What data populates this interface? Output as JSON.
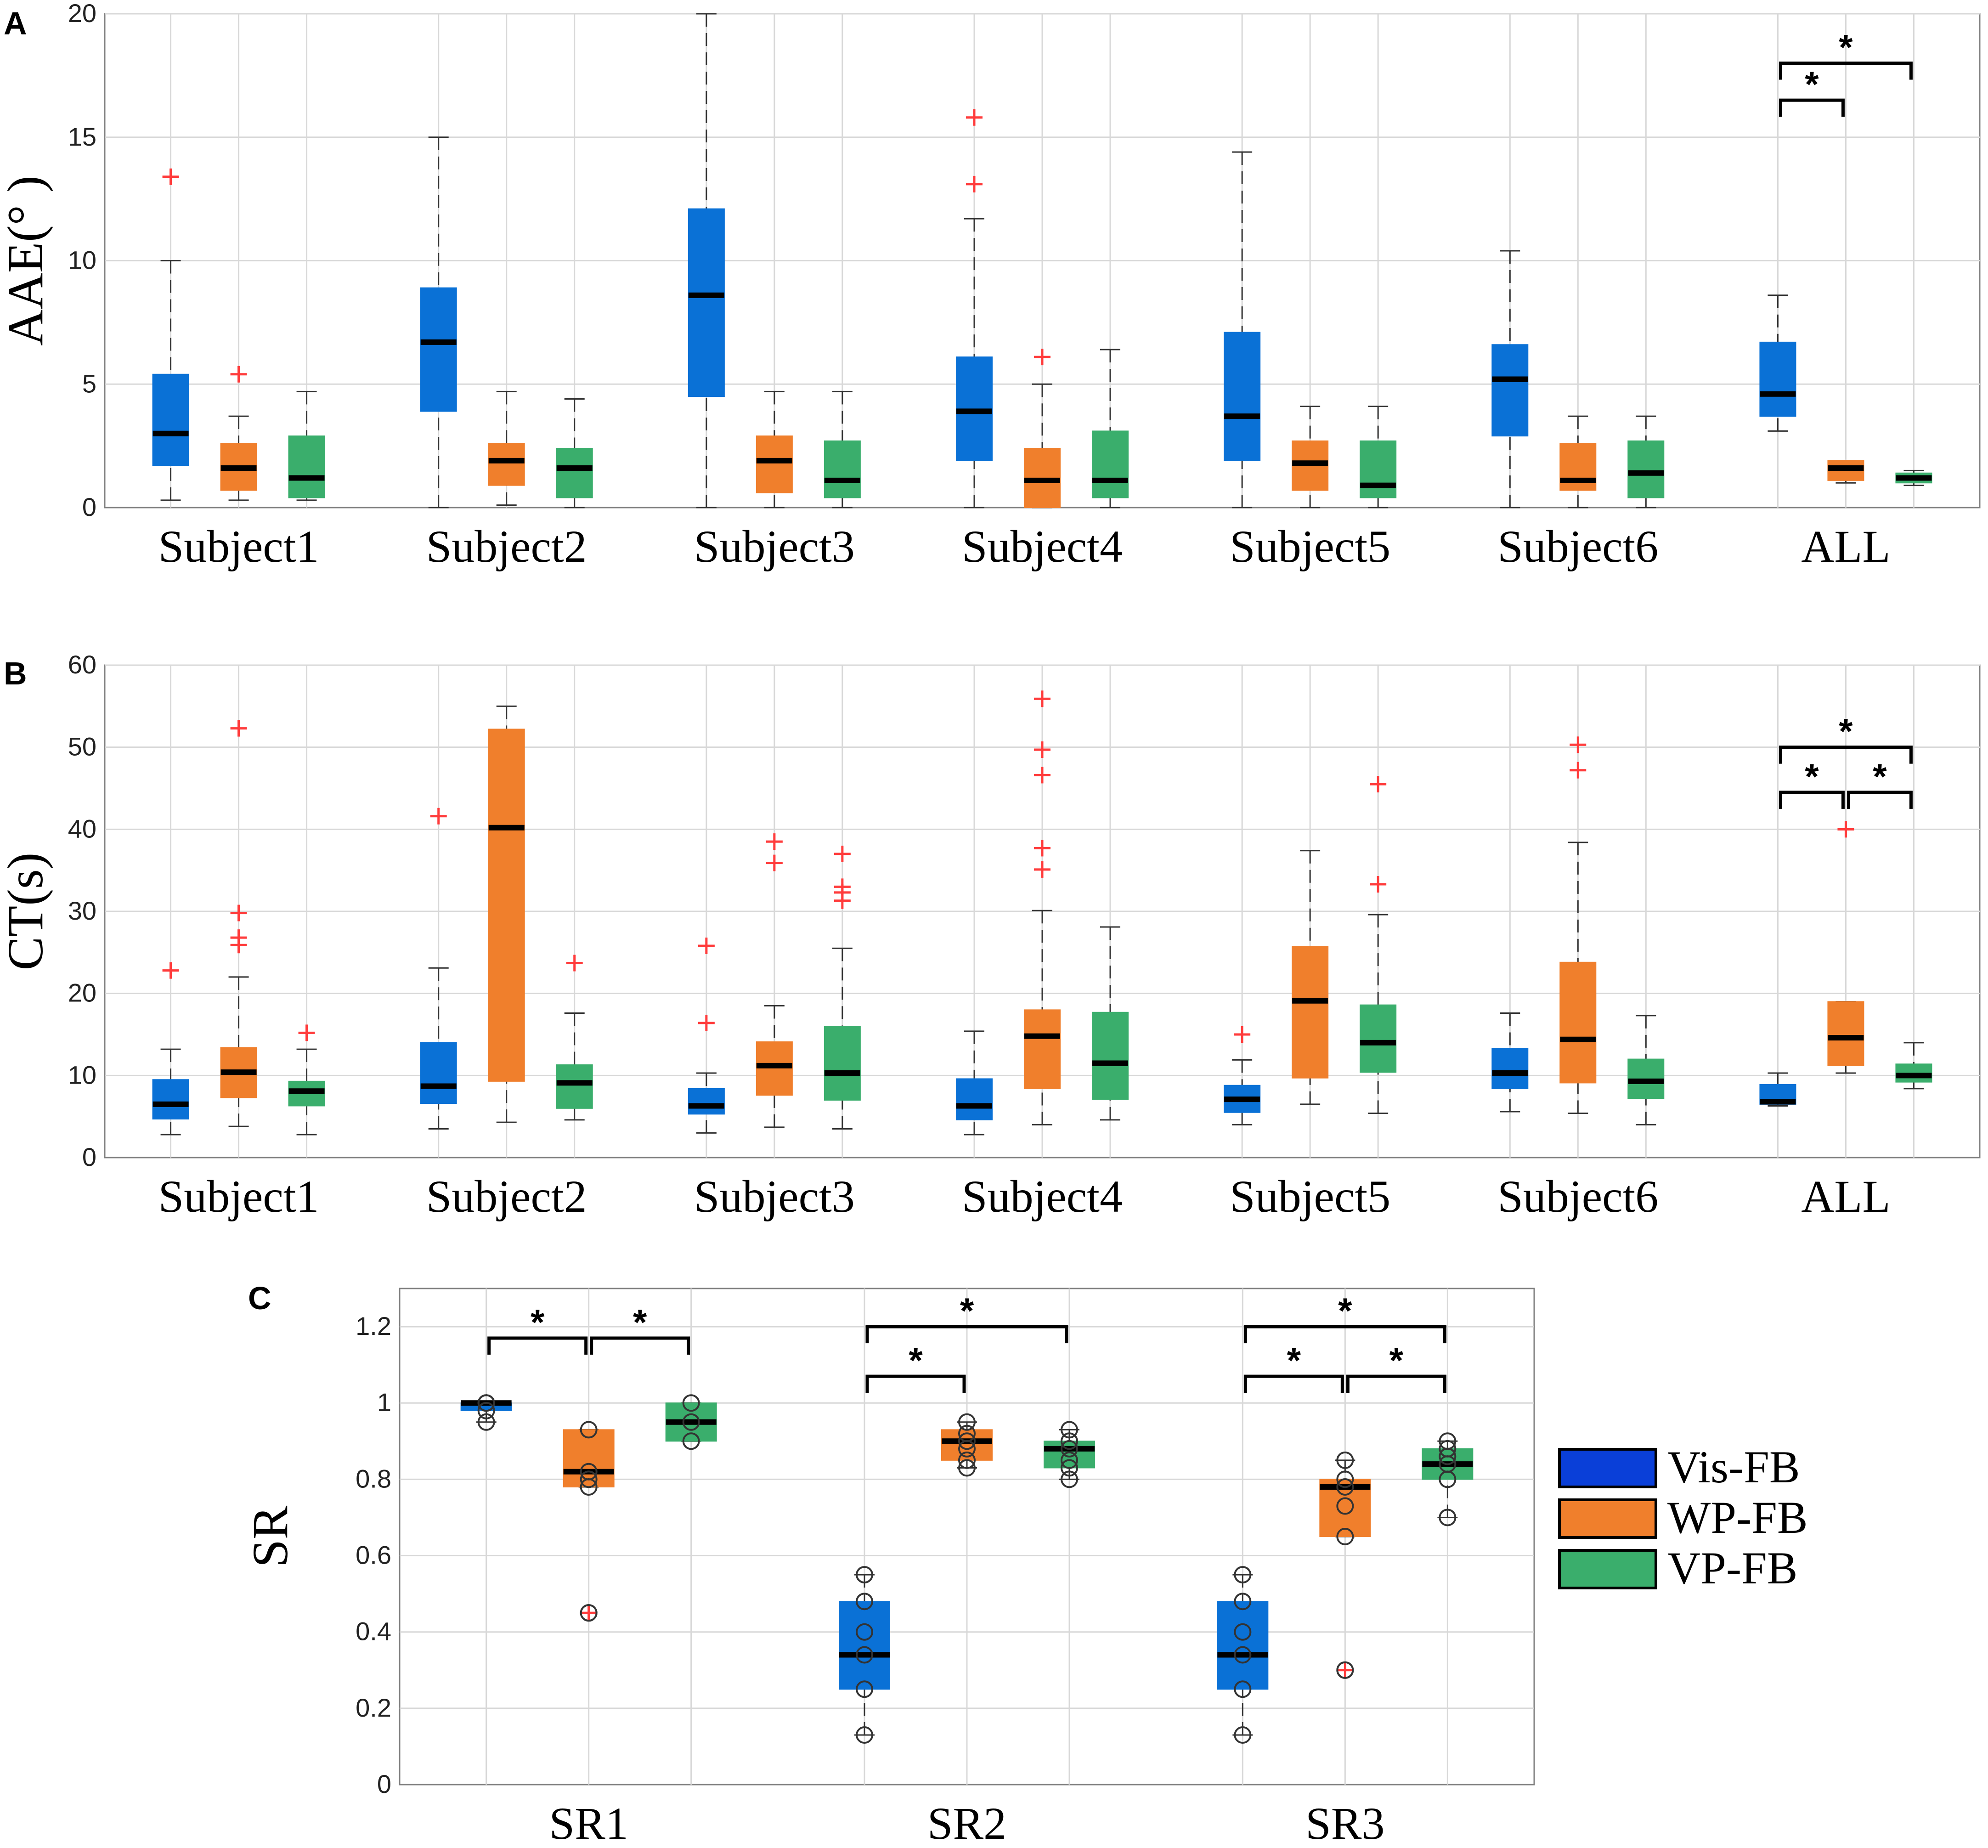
{
  "legend": {
    "items": [
      {
        "label": "Vis-FB",
        "color": "#0a3fd8"
      },
      {
        "label": "WP-FB",
        "color": "#f07f2c"
      },
      {
        "label": "VP-FB",
        "color": "#3aae6c"
      }
    ]
  },
  "colors": {
    "vis": "#0a71d6",
    "wp": "#f07f2c",
    "vp": "#3aae6c",
    "outlier": "#ff3b3b",
    "median": "#000000",
    "grid": "#d8d8d8",
    "axis": "#808080"
  },
  "chart_data": [
    {
      "panel": "A",
      "type": "box",
      "ylabel": "AAE(°  )",
      "ylim": [
        0,
        20
      ],
      "yticks": [
        "0",
        "5",
        "10",
        "15",
        "20"
      ],
      "ytick_values": [
        0,
        5,
        10,
        15,
        20
      ],
      "categories": [
        "Subject1",
        "Subject2",
        "Subject3",
        "Subject4",
        "Subject5",
        "Subject6",
        "ALL"
      ],
      "series": [
        "Vis-FB",
        "WP-FB",
        "VP-FB"
      ],
      "boxes": [
        [
          {
            "min": 0.3,
            "q1": 1.7,
            "med": 3.0,
            "q3": 5.4,
            "max": 10.0,
            "outliers": [
              13.4
            ]
          },
          {
            "min": 0.3,
            "q1": 0.7,
            "med": 1.6,
            "q3": 2.6,
            "max": 3.7,
            "outliers": [
              5.4
            ]
          },
          {
            "min": 0.3,
            "q1": 0.4,
            "med": 1.2,
            "q3": 2.9,
            "max": 4.7,
            "outliers": []
          }
        ],
        [
          {
            "min": 0.0,
            "q1": 3.9,
            "med": 6.7,
            "q3": 8.9,
            "max": 15.0,
            "outliers": []
          },
          {
            "min": 0.1,
            "q1": 0.9,
            "med": 1.9,
            "q3": 2.6,
            "max": 4.7,
            "outliers": []
          },
          {
            "min": 0.0,
            "q1": 0.4,
            "med": 1.6,
            "q3": 2.4,
            "max": 4.4,
            "outliers": []
          }
        ],
        [
          {
            "min": 0.0,
            "q1": 4.5,
            "med": 8.6,
            "q3": 12.1,
            "max": 20.0,
            "outliers": []
          },
          {
            "min": 0.0,
            "q1": 0.6,
            "med": 1.9,
            "q3": 2.9,
            "max": 4.7,
            "outliers": []
          },
          {
            "min": 0.0,
            "q1": 0.4,
            "med": 1.1,
            "q3": 2.7,
            "max": 4.7,
            "outliers": []
          }
        ],
        [
          {
            "min": 0.0,
            "q1": 1.9,
            "med": 3.9,
            "q3": 6.1,
            "max": 11.7,
            "outliers": [
              13.1,
              15.8
            ]
          },
          {
            "min": 0.0,
            "q1": 0.0,
            "med": 1.1,
            "q3": 2.4,
            "max": 5.0,
            "outliers": [
              6.1
            ]
          },
          {
            "min": 0.0,
            "q1": 0.4,
            "med": 1.1,
            "q3": 3.1,
            "max": 6.4,
            "outliers": []
          }
        ],
        [
          {
            "min": 0.0,
            "q1": 1.9,
            "med": 3.7,
            "q3": 7.1,
            "max": 14.4,
            "outliers": []
          },
          {
            "min": 0.0,
            "q1": 0.7,
            "med": 1.8,
            "q3": 2.7,
            "max": 4.1,
            "outliers": []
          },
          {
            "min": 0.0,
            "q1": 0.4,
            "med": 0.9,
            "q3": 2.7,
            "max": 4.1,
            "outliers": []
          }
        ],
        [
          {
            "min": 0.0,
            "q1": 2.9,
            "med": 5.2,
            "q3": 6.6,
            "max": 10.4,
            "outliers": []
          },
          {
            "min": 0.0,
            "q1": 0.7,
            "med": 1.1,
            "q3": 2.6,
            "max": 3.7,
            "outliers": []
          },
          {
            "min": 0.0,
            "q1": 0.4,
            "med": 1.4,
            "q3": 2.7,
            "max": 3.7,
            "outliers": []
          }
        ],
        [
          {
            "min": 3.1,
            "q1": 3.7,
            "med": 4.6,
            "q3": 6.7,
            "max": 8.6,
            "outliers": []
          },
          {
            "min": 1.0,
            "q1": 1.1,
            "med": 1.6,
            "q3": 1.9,
            "max": 1.9,
            "outliers": []
          },
          {
            "min": 0.9,
            "q1": 1.0,
            "med": 1.2,
            "q3": 1.4,
            "max": 1.5,
            "outliers": []
          }
        ]
      ],
      "significance": [
        {
          "from": 0,
          "to": 1,
          "label": "*",
          "level": 16.5
        },
        {
          "from": 0,
          "to": 2,
          "label": "*",
          "level": 18.0
        }
      ]
    },
    {
      "panel": "B",
      "type": "box",
      "ylabel": "CT(s)",
      "ylim": [
        0,
        60
      ],
      "yticks": [
        "0",
        "10",
        "20",
        "30",
        "40",
        "50",
        "60"
      ],
      "ytick_values": [
        0,
        10,
        20,
        30,
        40,
        50,
        60
      ],
      "categories": [
        "Subject1",
        "Subject2",
        "Subject3",
        "Subject4",
        "Subject5",
        "Subject6",
        "ALL"
      ],
      "series": [
        "Vis-FB",
        "WP-FB",
        "VP-FB"
      ],
      "boxes": [
        [
          {
            "min": 2.8,
            "q1": 4.7,
            "med": 6.5,
            "q3": 9.5,
            "max": 13.2,
            "outliers": [
              22.8
            ]
          },
          {
            "min": 3.8,
            "q1": 7.3,
            "med": 10.4,
            "q3": 13.4,
            "max": 22.0,
            "outliers": [
              25.9,
              26.8,
              29.8,
              52.3
            ]
          },
          {
            "min": 2.8,
            "q1": 6.3,
            "med": 8.1,
            "q3": 9.3,
            "max": 13.2,
            "outliers": [
              15.2
            ]
          }
        ],
        [
          {
            "min": 3.5,
            "q1": 6.6,
            "med": 8.7,
            "q3": 14.0,
            "max": 23.1,
            "outliers": [
              41.6
            ]
          },
          {
            "min": 4.3,
            "q1": 9.3,
            "med": 40.2,
            "q3": 52.2,
            "max": 55.0,
            "outliers": []
          },
          {
            "min": 4.6,
            "q1": 6.0,
            "med": 9.1,
            "q3": 11.3,
            "max": 17.6,
            "outliers": [
              23.7
            ]
          }
        ],
        [
          {
            "min": 3.0,
            "q1": 5.3,
            "med": 6.3,
            "q3": 8.4,
            "max": 10.3,
            "outliers": [
              16.4,
              25.8
            ]
          },
          {
            "min": 3.7,
            "q1": 7.6,
            "med": 11.2,
            "q3": 14.1,
            "max": 18.5,
            "outliers": [
              35.9,
              38.5
            ]
          },
          {
            "min": 3.5,
            "q1": 7.0,
            "med": 10.3,
            "q3": 16.0,
            "max": 25.5,
            "outliers": [
              31.3,
              32.3,
              33.0,
              37.0
            ]
          }
        ],
        [
          {
            "min": 2.8,
            "q1": 4.6,
            "med": 6.3,
            "q3": 9.6,
            "max": 15.4,
            "outliers": []
          },
          {
            "min": 4.0,
            "q1": 8.4,
            "med": 14.8,
            "q3": 18.0,
            "max": 30.1,
            "outliers": [
              35.1,
              37.7,
              46.6,
              49.7,
              55.9
            ]
          },
          {
            "min": 4.6,
            "q1": 7.1,
            "med": 11.5,
            "q3": 17.7,
            "max": 28.1,
            "outliers": []
          }
        ],
        [
          {
            "min": 4.0,
            "q1": 5.5,
            "med": 7.1,
            "q3": 8.8,
            "max": 11.9,
            "outliers": [
              15.0
            ]
          },
          {
            "min": 6.5,
            "q1": 9.7,
            "med": 19.1,
            "q3": 25.7,
            "max": 37.4,
            "outliers": []
          },
          {
            "min": 5.4,
            "q1": 10.4,
            "med": 14.0,
            "q3": 18.6,
            "max": 29.6,
            "outliers": [
              33.3,
              45.5
            ]
          }
        ],
        [
          {
            "min": 5.6,
            "q1": 8.4,
            "med": 10.3,
            "q3": 13.3,
            "max": 17.6,
            "outliers": []
          },
          {
            "min": 5.4,
            "q1": 9.1,
            "med": 14.4,
            "q3": 23.8,
            "max": 38.4,
            "outliers": [
              47.2,
              50.3
            ]
          },
          {
            "min": 4.0,
            "q1": 7.2,
            "med": 9.3,
            "q3": 12.0,
            "max": 17.3,
            "outliers": []
          }
        ],
        [
          {
            "min": 6.3,
            "q1": 6.5,
            "med": 6.8,
            "q3": 8.9,
            "max": 10.3,
            "outliers": []
          },
          {
            "min": 10.3,
            "q1": 11.2,
            "med": 14.6,
            "q3": 19.0,
            "max": 19.0,
            "outliers": [
              40.0
            ]
          },
          {
            "min": 8.4,
            "q1": 9.2,
            "med": 10.0,
            "q3": 11.4,
            "max": 14.0,
            "outliers": []
          }
        ]
      ],
      "significance": [
        {
          "from": 0,
          "to": 1,
          "label": "*",
          "level": 44.5
        },
        {
          "from": 1,
          "to": 2,
          "label": "*",
          "level": 44.5
        },
        {
          "from": 0,
          "to": 2,
          "label": "*",
          "level": 50.0
        }
      ]
    },
    {
      "panel": "C",
      "type": "box",
      "ylabel": "SR",
      "ylim": [
        0,
        1.3
      ],
      "yticks": [
        "0",
        "0.2",
        "0.4",
        "0.6",
        "0.8",
        "1",
        "1.2"
      ],
      "ytick_values": [
        0,
        0.2,
        0.4,
        0.6,
        0.8,
        1.0,
        1.2
      ],
      "categories": [
        "SR1",
        "SR2",
        "SR3"
      ],
      "series": [
        "Vis-FB",
        "WP-FB",
        "VP-FB"
      ],
      "boxes": [
        [
          {
            "min": 0.95,
            "q1": 0.98,
            "med": 1.0,
            "q3": 1.0,
            "max": 1.0,
            "outliers": [],
            "points": [
              1.0,
              1.0,
              1.0,
              0.98,
              0.95
            ]
          },
          {
            "min": 0.78,
            "q1": 0.78,
            "med": 0.82,
            "q3": 0.93,
            "max": 0.93,
            "outliers": [
              0.45
            ],
            "points": [
              0.93,
              0.82,
              0.8,
              0.78,
              0.45
            ]
          },
          {
            "min": 0.9,
            "q1": 0.9,
            "med": 0.95,
            "q3": 1.0,
            "max": 1.0,
            "outliers": [],
            "points": [
              1.0,
              0.95,
              0.9
            ]
          }
        ],
        [
          {
            "min": 0.13,
            "q1": 0.25,
            "med": 0.34,
            "q3": 0.48,
            "max": 0.55,
            "outliers": [],
            "points": [
              0.55,
              0.48,
              0.4,
              0.34,
              0.25,
              0.13
            ]
          },
          {
            "min": 0.83,
            "q1": 0.85,
            "med": 0.9,
            "q3": 0.93,
            "max": 0.95,
            "outliers": [],
            "points": [
              0.95,
              0.92,
              0.9,
              0.88,
              0.85,
              0.83
            ]
          },
          {
            "min": 0.8,
            "q1": 0.83,
            "med": 0.88,
            "q3": 0.9,
            "max": 0.93,
            "outliers": [],
            "points": [
              0.93,
              0.9,
              0.88,
              0.85,
              0.83,
              0.8
            ]
          }
        ],
        [
          {
            "min": 0.13,
            "q1": 0.25,
            "med": 0.34,
            "q3": 0.48,
            "max": 0.55,
            "outliers": [],
            "points": [
              0.55,
              0.48,
              0.4,
              0.34,
              0.25,
              0.13
            ]
          },
          {
            "min": 0.65,
            "q1": 0.65,
            "med": 0.78,
            "q3": 0.8,
            "max": 0.85,
            "outliers": [
              0.3
            ],
            "points": [
              0.85,
              0.8,
              0.78,
              0.73,
              0.65,
              0.3
            ]
          },
          {
            "min": 0.7,
            "q1": 0.8,
            "med": 0.84,
            "q3": 0.88,
            "max": 0.9,
            "outliers": [],
            "points": [
              0.9,
              0.88,
              0.86,
              0.84,
              0.8,
              0.7
            ]
          }
        ]
      ],
      "significance": [
        {
          "category": 0,
          "from": 0,
          "to": 1,
          "label": "*",
          "level": 1.17
        },
        {
          "category": 0,
          "from": 1,
          "to": 2,
          "label": "*",
          "level": 1.17
        },
        {
          "category": 1,
          "from": 0,
          "to": 1,
          "label": "*",
          "level": 1.07
        },
        {
          "category": 1,
          "from": 0,
          "to": 2,
          "label": "*",
          "level": 1.2
        },
        {
          "category": 2,
          "from": 0,
          "to": 1,
          "label": "*",
          "level": 1.07
        },
        {
          "category": 2,
          "from": 1,
          "to": 2,
          "label": "*",
          "level": 1.07
        },
        {
          "category": 2,
          "from": 0,
          "to": 2,
          "label": "*",
          "level": 1.2
        }
      ]
    }
  ],
  "panel_labels": [
    "A",
    "B",
    "C"
  ]
}
